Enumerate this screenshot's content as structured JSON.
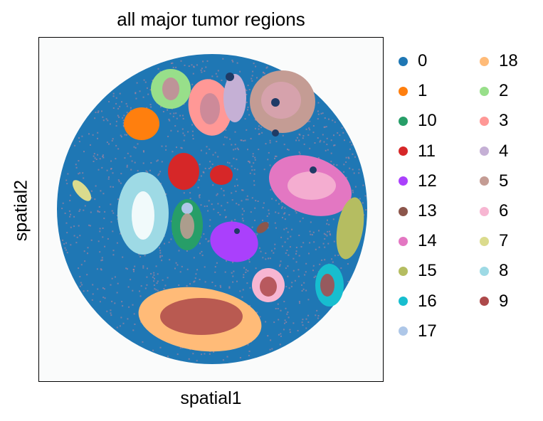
{
  "chart_data": {
    "type": "scatter",
    "title": "all major tumor regions",
    "xlabel": "spatial1",
    "ylabel": "spatial2",
    "grid": false,
    "ticks": false,
    "legend_placement": "right, outside plot, two columns",
    "categories": [
      {
        "label": "0",
        "color": "#1f77b4"
      },
      {
        "label": "1",
        "color": "#ff7f0e"
      },
      {
        "label": "10",
        "color": "#279e68"
      },
      {
        "label": "11",
        "color": "#d62728"
      },
      {
        "label": "12",
        "color": "#aa40fc"
      },
      {
        "label": "13",
        "color": "#8c564b"
      },
      {
        "label": "14",
        "color": "#e377c2"
      },
      {
        "label": "15",
        "color": "#b5bd61"
      },
      {
        "label": "16",
        "color": "#17becf"
      },
      {
        "label": "17",
        "color": "#aec7e8"
      },
      {
        "label": "18",
        "color": "#ffbb78"
      },
      {
        "label": "2",
        "color": "#98df8a"
      },
      {
        "label": "3",
        "color": "#ff9896"
      },
      {
        "label": "4",
        "color": "#c5b0d5"
      },
      {
        "label": "5",
        "color": "#c49c94"
      },
      {
        "label": "6",
        "color": "#f7b6d2"
      },
      {
        "label": "7",
        "color": "#dbdb8d"
      },
      {
        "label": "8",
        "color": "#9edae5"
      },
      {
        "label": "9",
        "color": "#ad494a"
      }
    ],
    "background_region": "0",
    "scatter_overlay_colors": [
      "#c4879a",
      "#ad494a"
    ]
  }
}
